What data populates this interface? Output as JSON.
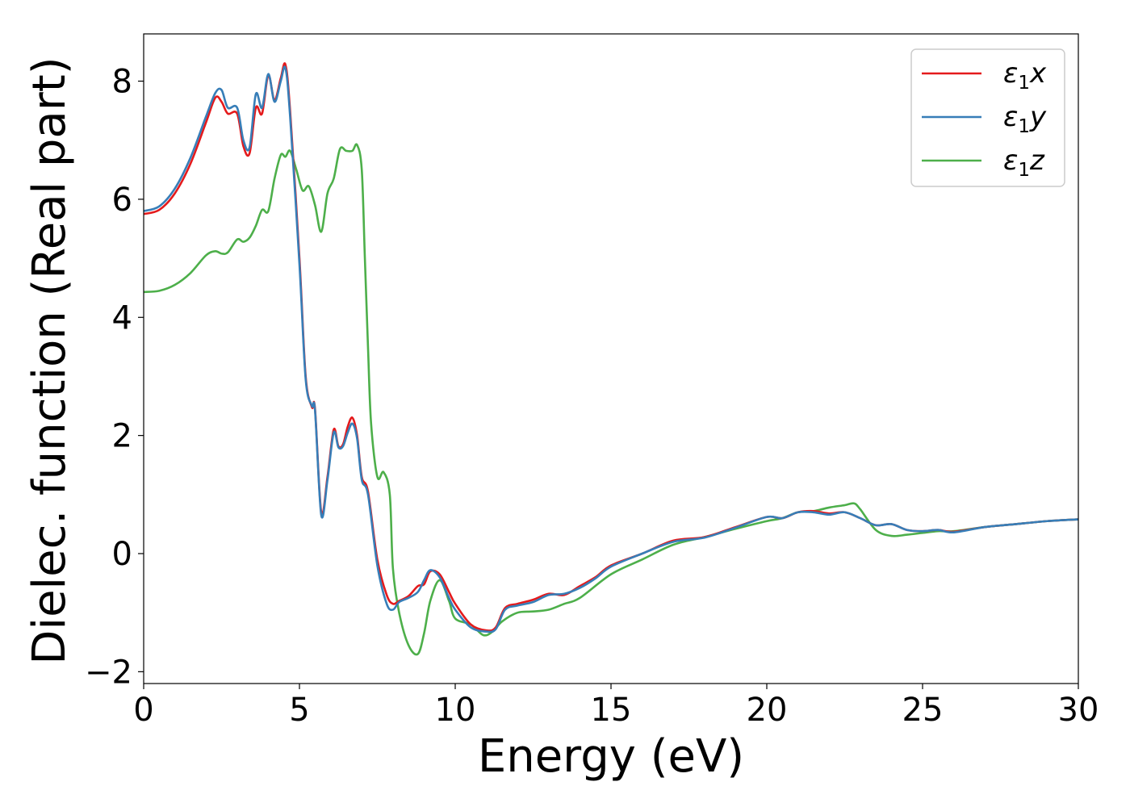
{
  "chart_data": {
    "type": "line",
    "title": "",
    "xlabel": "Energy (eV)",
    "ylabel": "Dielec. function (Real part)",
    "xlim": [
      0,
      30
    ],
    "ylim": [
      -2.2,
      8.8
    ],
    "xticks": [
      0,
      5,
      10,
      15,
      20,
      25,
      30
    ],
    "xtick_labels": [
      "0",
      "5",
      "10",
      "15",
      "20",
      "25",
      "30"
    ],
    "yticks": [
      -2,
      0,
      2,
      4,
      6,
      8
    ],
    "ytick_labels": [
      "−2",
      "0",
      "2",
      "4",
      "6",
      "8"
    ],
    "grid": false,
    "legend_position": "top-right",
    "series": [
      {
        "name": "x",
        "legend_prefix": "ε",
        "legend_sub": "1",
        "color": "#e41a1c",
        "x": [
          0,
          0.5,
          1.0,
          1.5,
          2.0,
          2.3,
          2.5,
          2.7,
          3.0,
          3.2,
          3.4,
          3.6,
          3.8,
          4.0,
          4.2,
          4.4,
          4.55,
          4.7,
          5.0,
          5.2,
          5.4,
          5.5,
          5.7,
          5.9,
          6.1,
          6.25,
          6.4,
          6.55,
          6.7,
          6.85,
          7.0,
          7.2,
          7.5,
          7.8,
          8.0,
          8.2,
          8.5,
          8.8,
          9.0,
          9.2,
          9.5,
          9.8,
          10.0,
          10.5,
          11.0,
          11.3,
          11.6,
          12.0,
          12.5,
          13.0,
          13.5,
          14.0,
          14.5,
          15.0,
          16.0,
          17.0,
          18.0,
          19.0,
          20.0,
          20.5,
          21.0,
          21.5,
          22.0,
          22.5,
          23.0,
          23.5,
          24.0,
          24.5,
          25.0,
          25.5,
          26.0,
          27.0,
          28.0,
          29.0,
          30.0
        ],
        "y": [
          5.75,
          5.82,
          6.1,
          6.6,
          7.3,
          7.72,
          7.65,
          7.45,
          7.45,
          6.9,
          6.78,
          7.55,
          7.45,
          8.1,
          7.68,
          8.05,
          8.28,
          7.5,
          5.0,
          3.0,
          2.48,
          2.45,
          0.7,
          1.3,
          2.1,
          1.82,
          1.85,
          2.15,
          2.3,
          2.0,
          1.3,
          1.05,
          -0.1,
          -0.7,
          -0.85,
          -0.8,
          -0.72,
          -0.55,
          -0.52,
          -0.3,
          -0.35,
          -0.65,
          -0.85,
          -1.2,
          -1.3,
          -1.25,
          -0.92,
          -0.85,
          -0.78,
          -0.68,
          -0.7,
          -0.55,
          -0.4,
          -0.2,
          0.0,
          0.22,
          0.28,
          0.45,
          0.62,
          0.6,
          0.7,
          0.72,
          0.68,
          0.7,
          0.6,
          0.48,
          0.5,
          0.4,
          0.38,
          0.4,
          0.37,
          0.45,
          0.5,
          0.55,
          0.58
        ]
      },
      {
        "name": "y",
        "legend_prefix": "ε",
        "legend_sub": "1",
        "color": "#377eb8",
        "x": [
          0,
          0.5,
          1.0,
          1.5,
          2.0,
          2.3,
          2.5,
          2.7,
          3.0,
          3.2,
          3.4,
          3.6,
          3.8,
          4.0,
          4.2,
          4.4,
          4.55,
          4.7,
          5.0,
          5.2,
          5.4,
          5.5,
          5.7,
          5.9,
          6.1,
          6.25,
          6.4,
          6.55,
          6.7,
          6.85,
          7.0,
          7.2,
          7.5,
          7.8,
          8.0,
          8.2,
          8.5,
          8.8,
          9.0,
          9.2,
          9.5,
          9.8,
          10.0,
          10.5,
          11.0,
          11.3,
          11.6,
          12.0,
          12.5,
          13.0,
          13.5,
          14.0,
          14.5,
          15.0,
          16.0,
          17.0,
          18.0,
          19.0,
          20.0,
          20.5,
          21.0,
          21.5,
          22.0,
          22.5,
          23.0,
          23.5,
          24.0,
          24.5,
          25.0,
          25.5,
          26.0,
          27.0,
          28.0,
          29.0,
          30.0
        ],
        "y": [
          5.8,
          5.88,
          6.18,
          6.7,
          7.4,
          7.8,
          7.85,
          7.55,
          7.55,
          7.0,
          6.88,
          7.78,
          7.55,
          8.12,
          7.65,
          8.0,
          8.22,
          7.4,
          4.9,
          2.95,
          2.5,
          2.42,
          0.65,
          1.25,
          2.05,
          1.8,
          1.82,
          2.05,
          2.2,
          1.95,
          1.25,
          1.0,
          -0.2,
          -0.85,
          -0.95,
          -0.82,
          -0.75,
          -0.65,
          -0.45,
          -0.28,
          -0.4,
          -0.75,
          -0.95,
          -1.25,
          -1.32,
          -1.28,
          -0.95,
          -0.88,
          -0.82,
          -0.7,
          -0.68,
          -0.58,
          -0.42,
          -0.22,
          0.0,
          0.2,
          0.27,
          0.44,
          0.62,
          0.6,
          0.7,
          0.7,
          0.66,
          0.7,
          0.6,
          0.48,
          0.5,
          0.4,
          0.38,
          0.4,
          0.36,
          0.45,
          0.5,
          0.55,
          0.58
        ]
      },
      {
        "name": "z",
        "legend_prefix": "ε",
        "legend_sub": "1",
        "color": "#4daf4a",
        "x": [
          0,
          0.5,
          1.0,
          1.5,
          2.0,
          2.3,
          2.5,
          2.7,
          3.0,
          3.2,
          3.4,
          3.6,
          3.8,
          4.0,
          4.2,
          4.4,
          4.55,
          4.7,
          4.9,
          5.1,
          5.3,
          5.5,
          5.7,
          5.9,
          6.1,
          6.3,
          6.5,
          6.7,
          6.85,
          7.0,
          7.1,
          7.2,
          7.3,
          7.5,
          7.7,
          7.9,
          8.0,
          8.2,
          8.5,
          8.8,
          9.0,
          9.2,
          9.5,
          9.8,
          10.0,
          10.5,
          10.9,
          11.2,
          11.5,
          12.0,
          12.5,
          13.0,
          13.5,
          14.0,
          15.0,
          16.0,
          17.0,
          18.0,
          19.0,
          20.0,
          20.5,
          21.0,
          21.5,
          22.0,
          22.5,
          22.8,
          23.0,
          23.5,
          24.0,
          24.5,
          25.0,
          25.5,
          26.0,
          27.0,
          28.0,
          29.0,
          30.0
        ],
        "y": [
          4.43,
          4.45,
          4.55,
          4.75,
          5.05,
          5.12,
          5.08,
          5.1,
          5.32,
          5.28,
          5.35,
          5.55,
          5.82,
          5.8,
          6.35,
          6.75,
          6.72,
          6.82,
          6.5,
          6.15,
          6.22,
          5.9,
          5.45,
          6.1,
          6.35,
          6.85,
          6.82,
          6.82,
          6.92,
          6.5,
          5.0,
          3.5,
          2.2,
          1.3,
          1.38,
          1.0,
          -0.25,
          -1.0,
          -1.55,
          -1.7,
          -1.35,
          -0.8,
          -0.45,
          -0.8,
          -1.1,
          -1.2,
          -1.38,
          -1.32,
          -1.15,
          -1.0,
          -0.98,
          -0.95,
          -0.85,
          -0.75,
          -0.35,
          -0.1,
          0.15,
          0.28,
          0.42,
          0.55,
          0.6,
          0.7,
          0.72,
          0.78,
          0.82,
          0.85,
          0.75,
          0.4,
          0.3,
          0.32,
          0.35,
          0.38,
          0.38,
          0.45,
          0.5,
          0.55,
          0.58
        ]
      }
    ]
  }
}
